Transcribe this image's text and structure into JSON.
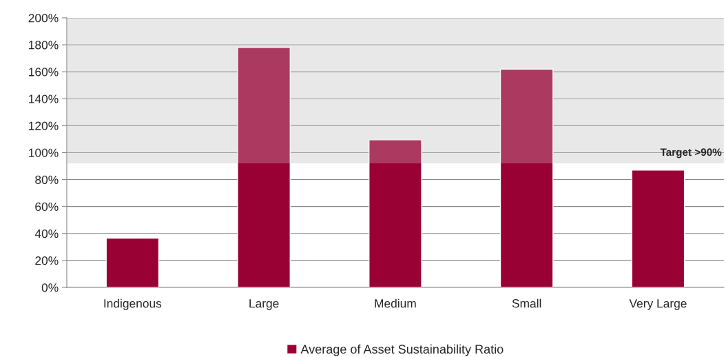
{
  "chart_data": {
    "type": "bar",
    "categories": [
      "Indigenous",
      "Large",
      "Medium",
      "Small",
      "Very Large"
    ],
    "series": [
      {
        "name": "Average of Asset Sustainability Ratio",
        "color": "#990033",
        "values": [
          36.5,
          178,
          109.5,
          162,
          87
        ]
      }
    ],
    "ylim": [
      0,
      200
    ],
    "yticks": [
      {
        "value": 0,
        "label": "0%"
      },
      {
        "value": 20,
        "label": "20%"
      },
      {
        "value": 40,
        "label": "40%"
      },
      {
        "value": 60,
        "label": "60%"
      },
      {
        "value": 80,
        "label": "80%"
      },
      {
        "value": 100,
        "label": "100%"
      },
      {
        "value": 120,
        "label": "120%"
      },
      {
        "value": 140,
        "label": "140%"
      },
      {
        "value": 160,
        "label": "160%"
      },
      {
        "value": 180,
        "label": "180%"
      },
      {
        "value": 200,
        "label": "200%"
      }
    ],
    "bands": [
      {
        "axis": "y",
        "from": 92,
        "to": 200,
        "label": "Target >90%",
        "color": "#e8e8e8"
      }
    ],
    "grid": "y",
    "legend": "bottom"
  }
}
